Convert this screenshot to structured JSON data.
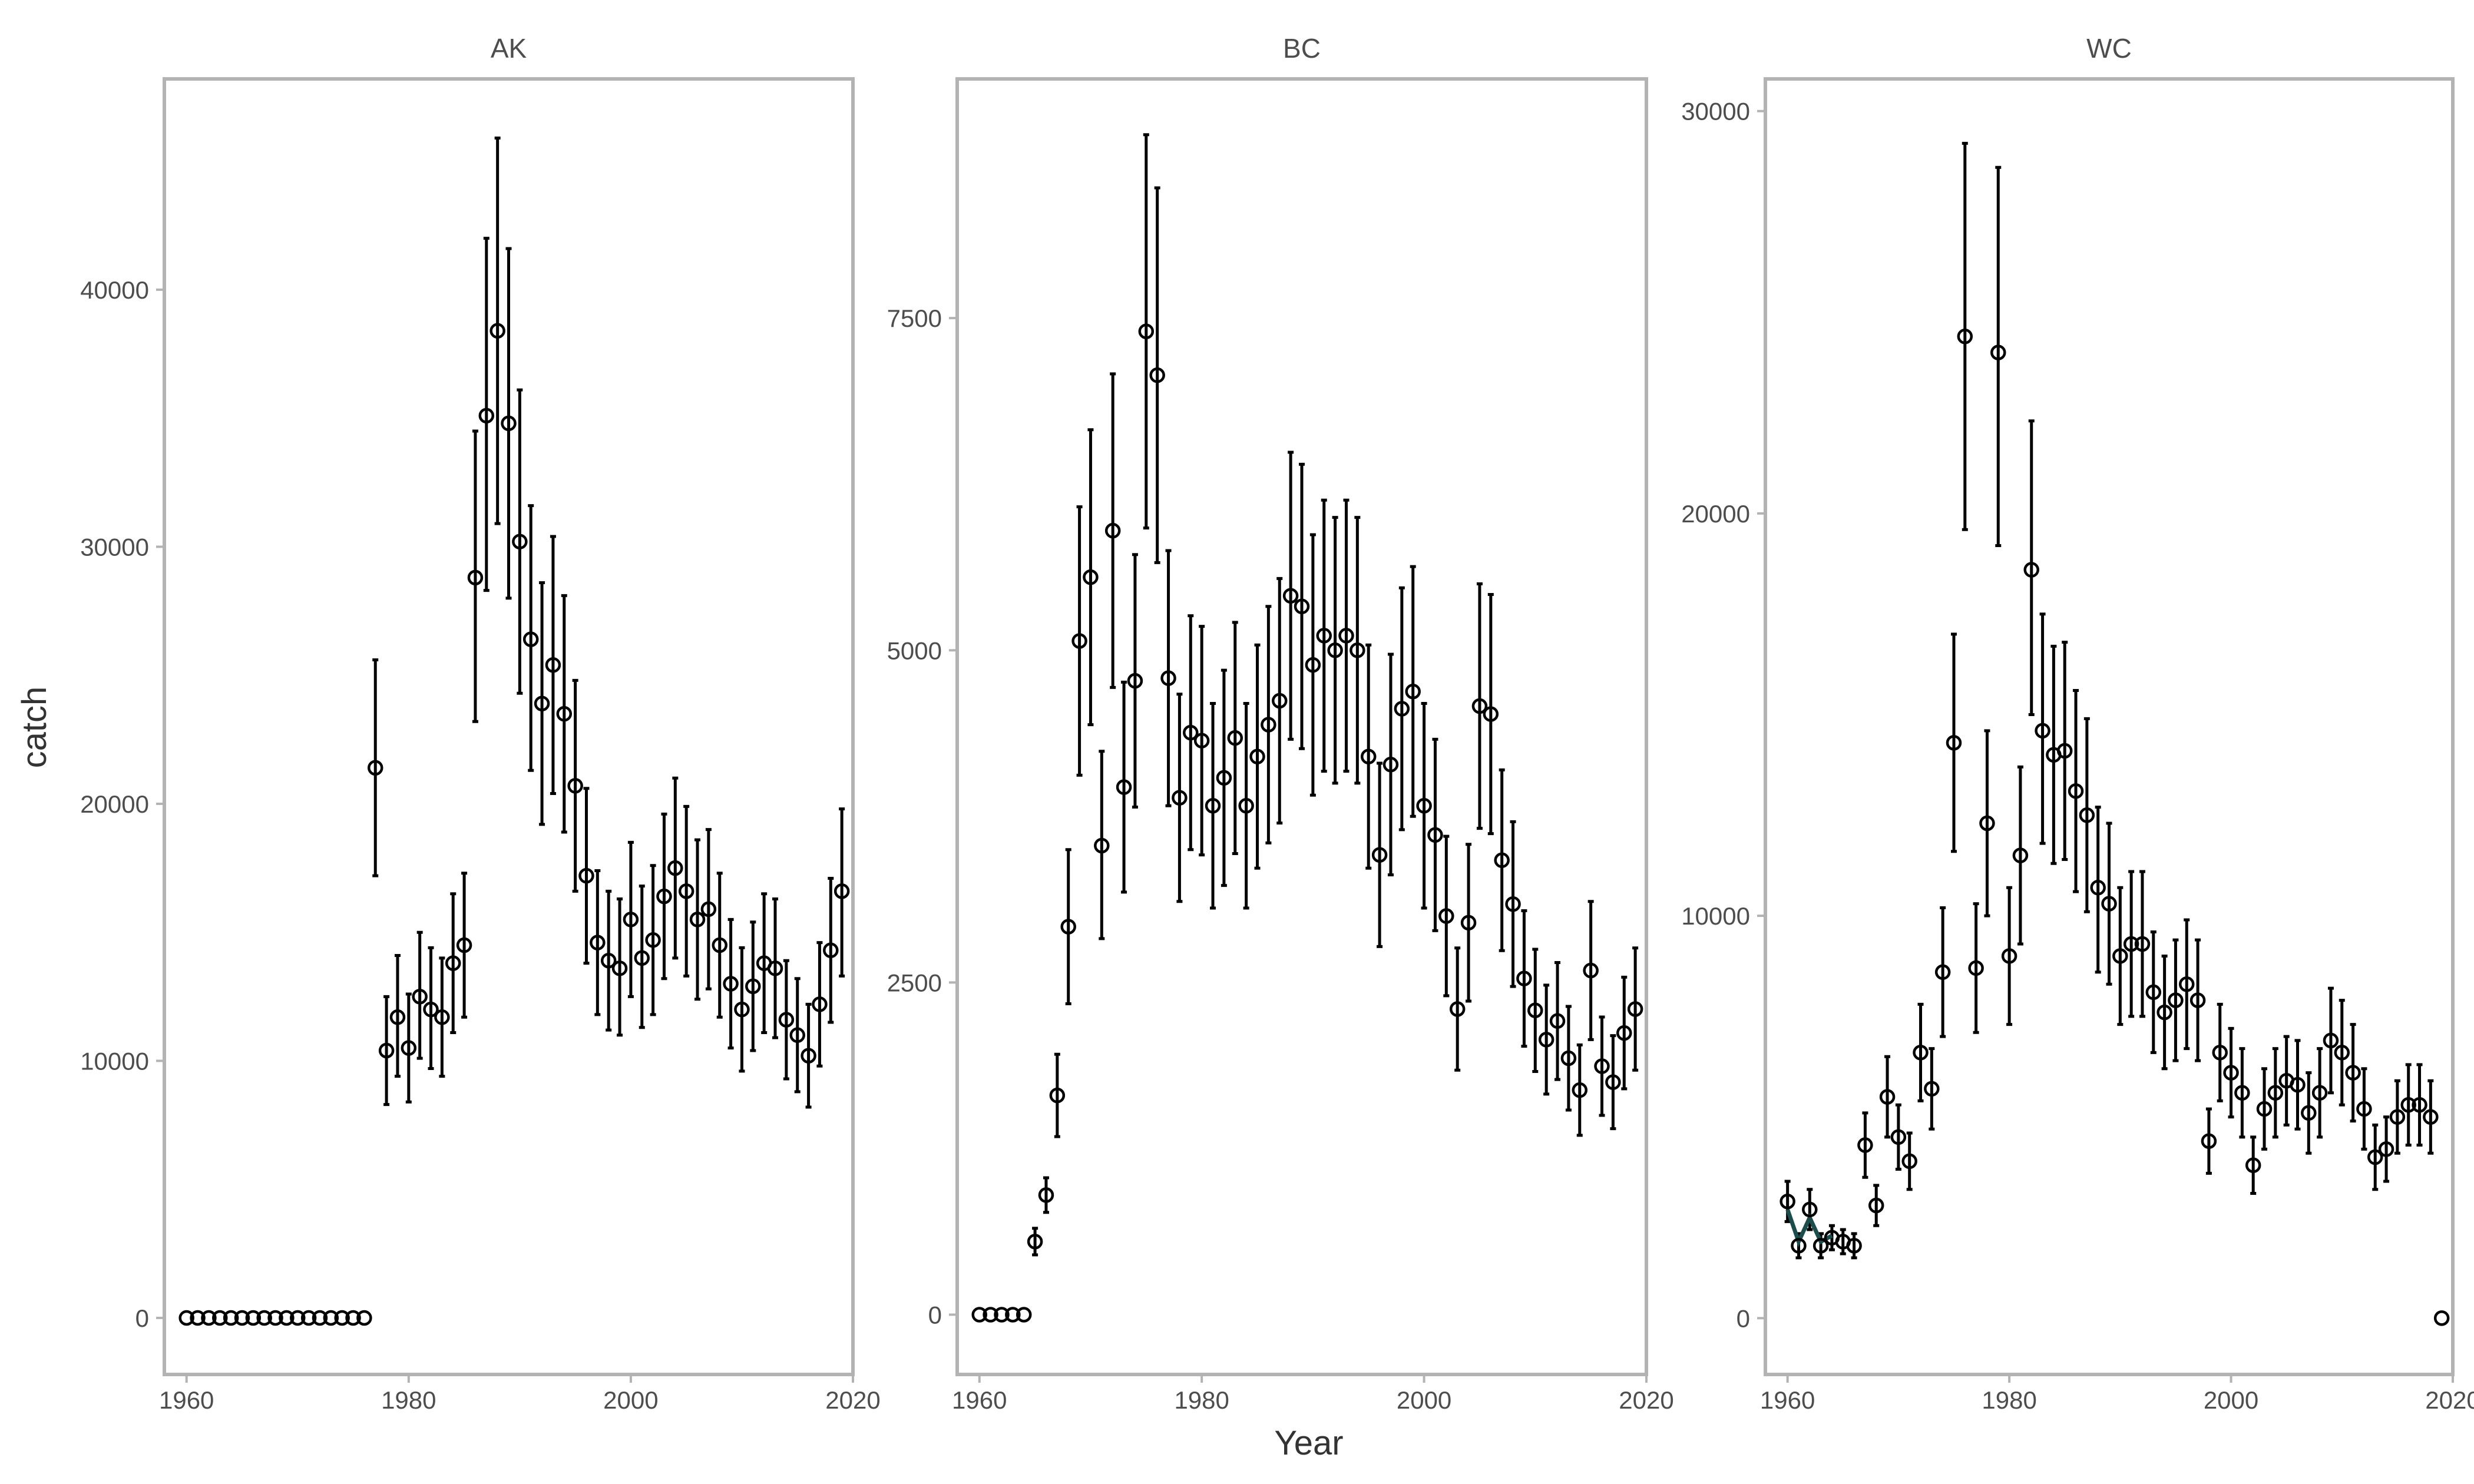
{
  "chart_data": {
    "type": "scatter",
    "error_bars": true,
    "xlabel": "Year",
    "ylabel": "catch",
    "grid": false,
    "line_color": "#1b4d4d",
    "xlim": [
      1958,
      2020
    ],
    "x_ticks": [
      1960,
      1980,
      2000,
      2020
    ],
    "facets": [
      {
        "title": "AK",
        "ylim": [
          -2200,
          48200
        ],
        "y_ticks": [
          0,
          10000,
          20000,
          30000,
          40000
        ],
        "x": [
          1960,
          1961,
          1962,
          1963,
          1964,
          1965,
          1966,
          1967,
          1968,
          1969,
          1970,
          1971,
          1972,
          1973,
          1974,
          1975,
          1976,
          1977,
          1978,
          1979,
          1980,
          1981,
          1982,
          1983,
          1984,
          1985,
          1986,
          1987,
          1988,
          1989,
          1990,
          1991,
          1992,
          1993,
          1994,
          1995,
          1996,
          1997,
          1998,
          1999,
          2000,
          2001,
          2002,
          2003,
          2004,
          2005,
          2006,
          2007,
          2008,
          2009,
          2010,
          2011,
          2012,
          2013,
          2014,
          2015,
          2016,
          2017,
          2018,
          2019
        ],
        "y": [
          0,
          0,
          0,
          0,
          0,
          0,
          0,
          0,
          0,
          0,
          0,
          0,
          0,
          0,
          0,
          0,
          0,
          21400,
          10400,
          11700,
          10500,
          12500,
          12000,
          11700,
          13800,
          14500,
          28800,
          35100,
          38400,
          34800,
          30200,
          26400,
          23900,
          25400,
          23500,
          20700,
          17200,
          14600,
          13900,
          13600,
          15500,
          14000,
          14700,
          16400,
          17500,
          16600,
          15500,
          15900,
          14500,
          13000,
          12000,
          12900,
          13800,
          13600,
          11600,
          11000,
          10200,
          12200,
          14300,
          16600
        ],
        "y_lower": [
          null,
          null,
          null,
          null,
          null,
          null,
          null,
          null,
          null,
          null,
          null,
          null,
          null,
          null,
          null,
          null,
          null,
          17200,
          8300,
          9400,
          8400,
          10100,
          9700,
          9400,
          11100,
          11700,
          23200,
          28300,
          30900,
          28000,
          24300,
          21300,
          19200,
          20400,
          18900,
          16600,
          13800,
          11800,
          11200,
          11000,
          12500,
          11300,
          11800,
          13200,
          14000,
          13300,
          12400,
          12800,
          11700,
          10500,
          9600,
          10400,
          11100,
          10900,
          9300,
          8800,
          8200,
          9800,
          11500,
          13300
        ],
        "y_upper": [
          null,
          null,
          null,
          null,
          null,
          null,
          null,
          null,
          null,
          null,
          null,
          null,
          null,
          null,
          null,
          null,
          null,
          25600,
          12500,
          14100,
          12600,
          15000,
          14400,
          14000,
          16500,
          17300,
          34500,
          42000,
          45900,
          41600,
          36100,
          31600,
          28600,
          30400,
          28100,
          24800,
          20600,
          17400,
          16600,
          16300,
          18500,
          16800,
          17600,
          19600,
          21000,
          19900,
          18600,
          19000,
          17300,
          15500,
          14400,
          15400,
          16500,
          16300,
          13900,
          13200,
          12200,
          14600,
          17100,
          19800
        ],
        "line": null
      },
      {
        "title": "BC",
        "ylim": [
          -450,
          9300
        ],
        "y_ticks": [
          0,
          2500,
          5000,
          7500
        ],
        "x": [
          1960,
          1961,
          1962,
          1963,
          1964,
          1965,
          1966,
          1967,
          1968,
          1969,
          1970,
          1971,
          1972,
          1973,
          1974,
          1975,
          1976,
          1977,
          1978,
          1979,
          1980,
          1981,
          1982,
          1983,
          1984,
          1985,
          1986,
          1987,
          1988,
          1989,
          1990,
          1991,
          1992,
          1993,
          1994,
          1995,
          1996,
          1997,
          1998,
          1999,
          2000,
          2001,
          2002,
          2003,
          2004,
          2005,
          2006,
          2007,
          2008,
          2009,
          2010,
          2011,
          2012,
          2013,
          2014,
          2015,
          2016,
          2017,
          2018,
          2019
        ],
        "y": [
          0,
          0,
          0,
          0,
          0,
          550,
          900,
          1650,
          2920,
          5070,
          5550,
          3530,
          5900,
          3970,
          4770,
          7400,
          7070,
          4790,
          3890,
          4380,
          4320,
          3830,
          4040,
          4340,
          3830,
          4200,
          4440,
          4620,
          5410,
          5330,
          4890,
          5110,
          5000,
          5110,
          5000,
          4200,
          3460,
          4140,
          4560,
          4690,
          3830,
          3610,
          3000,
          2300,
          2950,
          4580,
          4520,
          3420,
          3090,
          2530,
          2290,
          2070,
          2210,
          1930,
          1690,
          2590,
          1870,
          1750,
          2120,
          2300
        ],
        "y_lower": [
          null,
          null,
          null,
          null,
          null,
          450,
          770,
          1340,
          2340,
          4060,
          4440,
          2830,
          4720,
          3180,
          3820,
          5920,
          5660,
          3830,
          3110,
          3500,
          3460,
          3060,
          3230,
          3470,
          3060,
          3360,
          3550,
          3700,
          4330,
          4260,
          3910,
          4090,
          4000,
          4090,
          4000,
          3360,
          2770,
          3310,
          3650,
          3750,
          3060,
          2890,
          2400,
          1840,
          2360,
          3660,
          3620,
          2740,
          2470,
          2020,
          1830,
          1660,
          1770,
          1540,
          1350,
          2070,
          1500,
          1400,
          1700,
          1840
        ],
        "y_upper": [
          null,
          null,
          null,
          null,
          null,
          650,
          1030,
          1960,
          3500,
          6080,
          6660,
          4240,
          7080,
          4760,
          5720,
          8880,
          8480,
          5750,
          4670,
          5260,
          5180,
          4600,
          4850,
          5210,
          4600,
          5040,
          5330,
          5540,
          6490,
          6400,
          5870,
          6130,
          6000,
          6130,
          6000,
          5040,
          4150,
          4970,
          5470,
          5630,
          4600,
          4330,
          3600,
          2760,
          3540,
          5500,
          5420,
          4100,
          3710,
          3040,
          2750,
          2480,
          2650,
          2320,
          2030,
          3110,
          2240,
          2100,
          2540,
          2760
        ],
        "line": null
      },
      {
        "title": "WC",
        "ylim": [
          -1400,
          30800
        ],
        "y_ticks": [
          0,
          10000,
          20000,
          30000
        ],
        "x": [
          1960,
          1961,
          1962,
          1963,
          1964,
          1965,
          1966,
          1967,
          1968,
          1969,
          1970,
          1971,
          1972,
          1973,
          1974,
          1975,
          1976,
          1977,
          1978,
          1979,
          1980,
          1981,
          1982,
          1983,
          1984,
          1985,
          1986,
          1987,
          1988,
          1989,
          1990,
          1991,
          1992,
          1993,
          1994,
          1995,
          1996,
          1997,
          1998,
          1999,
          2000,
          2001,
          2002,
          2003,
          2004,
          2005,
          2006,
          2007,
          2008,
          2009,
          2010,
          2011,
          2012,
          2013,
          2014,
          2015,
          2016,
          2017,
          2018,
          2019
        ],
        "y": [
          2900,
          1800,
          2700,
          1800,
          2000,
          1900,
          1800,
          4300,
          2800,
          5500,
          4500,
          3900,
          6600,
          5700,
          8600,
          14300,
          24400,
          8700,
          12300,
          24000,
          9000,
          11500,
          18600,
          14600,
          14000,
          14100,
          13100,
          12500,
          10700,
          10300,
          9000,
          9300,
          9300,
          8100,
          7600,
          7900,
          8300,
          7900,
          4400,
          6600,
          6100,
          5600,
          3800,
          5200,
          5600,
          5900,
          5800,
          5100,
          5600,
          6900,
          6600,
          6100,
          5200,
          4000,
          4200,
          5000,
          5300,
          5300,
          5000,
          0
        ],
        "y_lower": [
          2400,
          1500,
          2200,
          1500,
          1700,
          1600,
          1500,
          3500,
          2300,
          4500,
          3700,
          3200,
          5400,
          4700,
          7000,
          11600,
          19600,
          7100,
          10000,
          19200,
          7300,
          9300,
          15000,
          11800,
          11300,
          11400,
          10600,
          10100,
          8600,
          8300,
          7300,
          7500,
          7500,
          6600,
          6200,
          6400,
          6700,
          6400,
          3600,
          5400,
          5000,
          4500,
          3100,
          4200,
          4500,
          4800,
          4700,
          4100,
          4500,
          5600,
          5300,
          4900,
          4200,
          3200,
          3400,
          4100,
          4300,
          4300,
          4100,
          null
        ],
        "y_upper": [
          3400,
          2100,
          3200,
          2100,
          2300,
          2200,
          2100,
          5100,
          3300,
          6500,
          5300,
          4600,
          7800,
          6700,
          10200,
          17000,
          29200,
          10300,
          14600,
          28600,
          10700,
          13700,
          22300,
          17500,
          16700,
          16800,
          15600,
          14900,
          12700,
          12300,
          10700,
          11100,
          11100,
          9600,
          9000,
          9400,
          9900,
          9400,
          5200,
          7800,
          7200,
          6700,
          4500,
          6200,
          6700,
          7000,
          6900,
          6100,
          6700,
          8200,
          7900,
          7300,
          6200,
          4800,
          5000,
          5900,
          6300,
          6300,
          5900,
          null
        ],
        "line": {
          "x": [
            1960,
            1961,
            1962,
            1963,
            1964
          ],
          "y": [
            2700,
            1900,
            2500,
            1900,
            2050
          ]
        }
      }
    ]
  }
}
